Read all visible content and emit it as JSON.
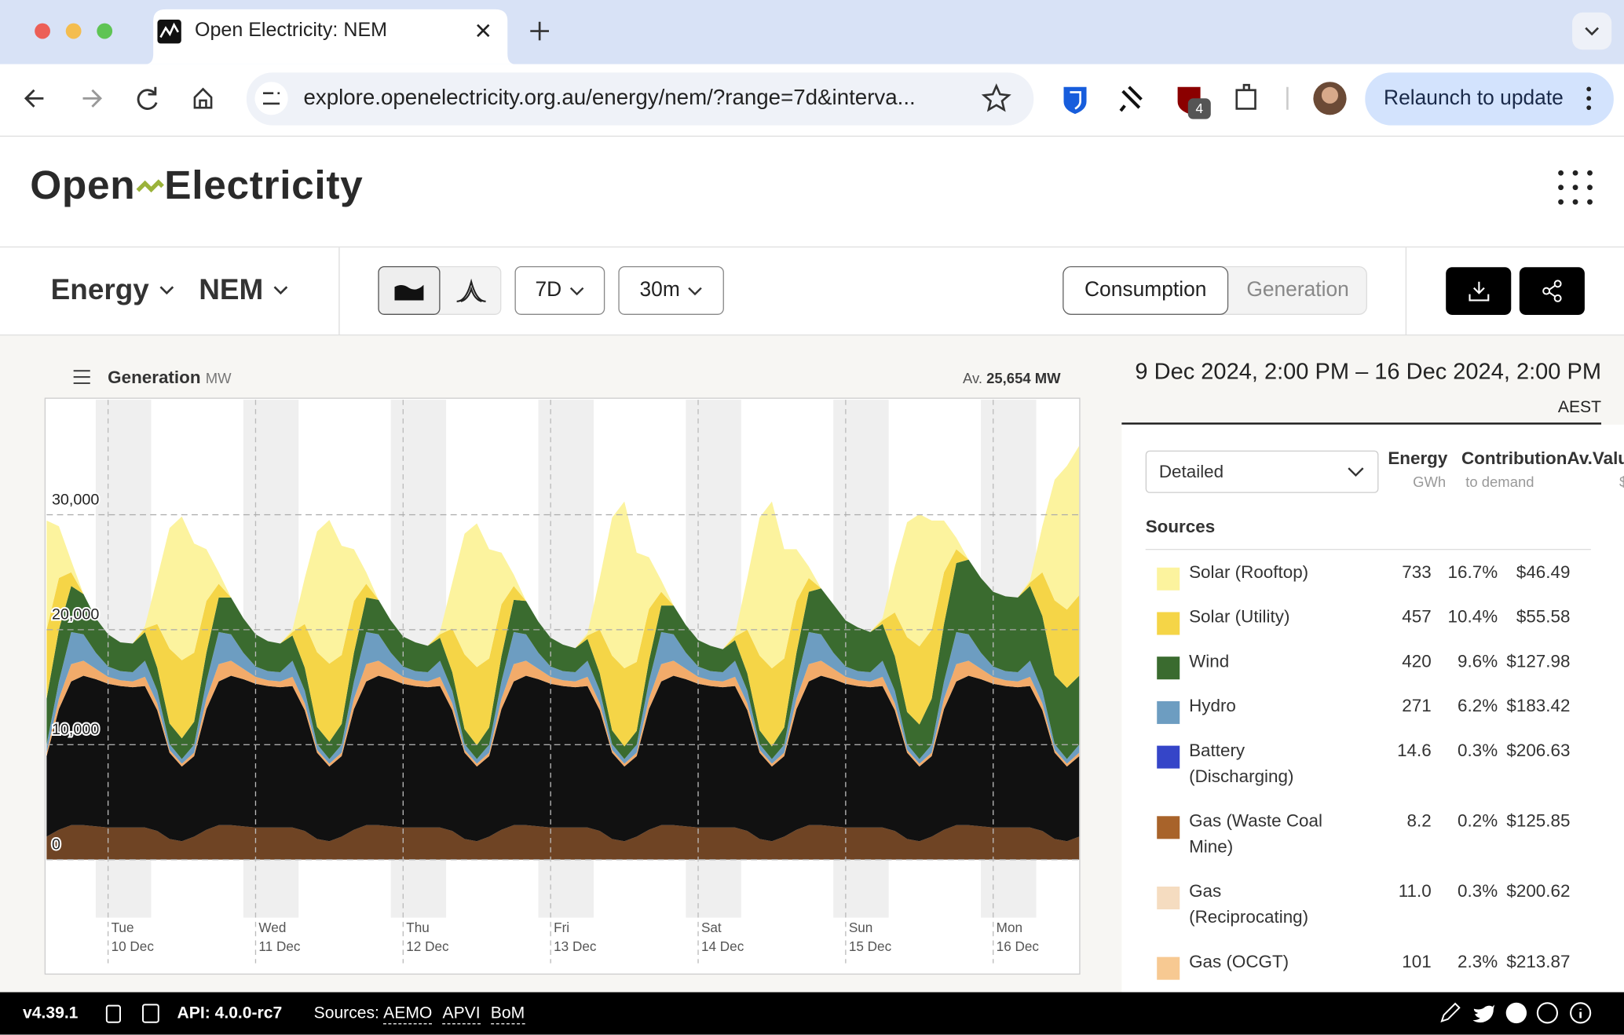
{
  "browser": {
    "tab_title": "Open Electricity: NEM",
    "url": "explore.openelectricity.org.au/energy/nem/?range=7d&interva...",
    "extension_badge": "4",
    "relaunch": "Relaunch to update"
  },
  "header": {
    "logo_left": "Open",
    "logo_right": "Electricity"
  },
  "toolbar": {
    "metric": "Energy",
    "region": "NEM",
    "range": "7D",
    "interval": "30m",
    "tabs": [
      "Consumption",
      "Generation"
    ]
  },
  "chart_data": {
    "type": "area",
    "stacked": true,
    "title": "Generation",
    "unit": "MW",
    "summary_label": "Av.",
    "summary_value": "25,654 MW",
    "grid": true,
    "categories": [
      null,
      null,
      null,
      null,
      null,
      "Tue\n10 Dec",
      null,
      null,
      null,
      null,
      null,
      null,
      null,
      null,
      null,
      null,
      null,
      "Wed\n11 Dec",
      null,
      null,
      null,
      null,
      null,
      null,
      null,
      null,
      null,
      null,
      null,
      "Thu\n12 Dec",
      null,
      null,
      null,
      null,
      null,
      null,
      null,
      null,
      null,
      null,
      null,
      "Fri\n13 Dec",
      null,
      null,
      null,
      null,
      null,
      null,
      null,
      null,
      null,
      null,
      null,
      "Sat\n14 Dec",
      null,
      null,
      null,
      null,
      null,
      null,
      null,
      null,
      null,
      null,
      null,
      "Sun\n15 Dec",
      null,
      null,
      null,
      null,
      null,
      null,
      null,
      null,
      null,
      null,
      null,
      "Mon\n16 Dec",
      null,
      null,
      null,
      null,
      null,
      null,
      null
    ],
    "ylim": [
      -10000,
      40000
    ],
    "yticks": [
      {
        "value": 30000,
        "label": "30,000"
      },
      {
        "value": 20000,
        "label": "20,000"
      },
      {
        "value": 10000,
        "label": "10,000"
      },
      0
    ],
    "series": [
      {
        "color": "#6f4424",
        "values": [
          2000,
          2600,
          3000,
          3000,
          2900,
          2800,
          2800,
          2800,
          2800,
          2500,
          1800,
          1600,
          2000,
          2600,
          3000,
          3000,
          2900,
          2800,
          2800,
          2800,
          2800,
          2500,
          1800,
          1600,
          2000,
          2600,
          3000,
          3000,
          2900,
          2800,
          2800,
          2800,
          2800,
          2500,
          1800,
          1600,
          2000,
          2600,
          3000,
          3000,
          2900,
          2800,
          2800,
          2800,
          2800,
          2500,
          1800,
          1600,
          2000,
          2600,
          3000,
          3000,
          2900,
          2800,
          2800,
          2800,
          2800,
          2500,
          1800,
          1600,
          2000,
          2600,
          3000,
          3000,
          2900,
          2800,
          2800,
          2800,
          2800,
          2500,
          1800,
          1600,
          2000,
          2600,
          3000,
          3000,
          2900,
          2800,
          2800,
          2800,
          2800,
          2500,
          1800,
          1600,
          2000
        ]
      },
      {
        "color": "#111111",
        "values": [
          7000,
          10500,
          12500,
          13000,
          12800,
          12500,
          12300,
          12200,
          12300,
          10500,
          7500,
          6500,
          7000,
          10500,
          12500,
          13000,
          12800,
          12500,
          12300,
          12200,
          12300,
          10500,
          7500,
          6500,
          7000,
          10500,
          12500,
          13000,
          12800,
          12500,
          12300,
          12200,
          12300,
          10500,
          7500,
          6500,
          7000,
          10500,
          12500,
          13000,
          12800,
          12500,
          12300,
          12200,
          12300,
          10500,
          7500,
          6500,
          7000,
          10500,
          12500,
          13000,
          12800,
          12500,
          12300,
          12200,
          12300,
          10500,
          7500,
          6500,
          7000,
          10500,
          12500,
          13000,
          12800,
          12500,
          12300,
          12200,
          12300,
          10500,
          7500,
          6500,
          7000,
          10500,
          12500,
          13000,
          12800,
          12500,
          12300,
          12200,
          12300,
          10500,
          7500,
          6500,
          7000
        ]
      },
      {
        "color": "#f2ab6a",
        "values": [
          300,
          900,
          1500,
          1300,
          900,
          600,
          500,
          500,
          800,
          600,
          250,
          250,
          300,
          900,
          1500,
          1300,
          900,
          600,
          500,
          500,
          800,
          600,
          250,
          250,
          300,
          900,
          1500,
          1300,
          900,
          600,
          500,
          500,
          800,
          600,
          250,
          250,
          300,
          900,
          1500,
          1300,
          900,
          600,
          500,
          500,
          800,
          600,
          250,
          250,
          300,
          900,
          1500,
          1300,
          900,
          600,
          500,
          500,
          800,
          600,
          250,
          250,
          300,
          900,
          1500,
          1300,
          900,
          600,
          500,
          500,
          800,
          600,
          250,
          250,
          300,
          900,
          1500,
          1300,
          900,
          600,
          500,
          500,
          800,
          600,
          250,
          250,
          300
        ]
      },
      {
        "color": "#6d9dc1",
        "values": [
          700,
          1500,
          2800,
          2300,
          1400,
          900,
          800,
          800,
          1400,
          1100,
          500,
          400,
          700,
          1500,
          2800,
          2300,
          1400,
          900,
          800,
          800,
          1400,
          1100,
          500,
          400,
          700,
          1500,
          2800,
          2300,
          1400,
          900,
          800,
          800,
          1400,
          1100,
          500,
          400,
          700,
          1500,
          2800,
          2300,
          1400,
          900,
          800,
          800,
          1400,
          1100,
          500,
          400,
          700,
          1500,
          2800,
          2300,
          1400,
          900,
          800,
          800,
          1400,
          1100,
          500,
          400,
          700,
          1500,
          2800,
          2300,
          1400,
          900,
          800,
          800,
          1400,
          1100,
          500,
          400,
          700,
          1500,
          2800,
          2300,
          1400,
          900,
          800,
          800,
          1400,
          1100,
          500,
          400,
          700
        ]
      },
      {
        "color": "#3a6b2f",
        "values": [
          4000,
          4500,
          4000,
          3500,
          3000,
          2800,
          2500,
          2500,
          2500,
          2000,
          1800,
          1800,
          2000,
          2500,
          3000,
          3200,
          3000,
          2800,
          2600,
          2500,
          2200,
          2000,
          1500,
          1500,
          1800,
          2500,
          3000,
          3000,
          2800,
          2600,
          2500,
          2300,
          2000,
          1600,
          1300,
          1200,
          1500,
          2200,
          2800,
          2900,
          2700,
          2500,
          2300,
          2100,
          1900,
          1500,
          1200,
          1100,
          1200,
          1800,
          2300,
          2500,
          2400,
          2300,
          2200,
          2000,
          1800,
          1500,
          1200,
          1100,
          1500,
          2500,
          3500,
          4000,
          4200,
          4000,
          3800,
          3500,
          3200,
          3000,
          2800,
          3000,
          4000,
          5000,
          6000,
          6500,
          6500,
          6500,
          6500,
          6500,
          6500,
          6500,
          6000,
          6200,
          6000
        ]
      },
      {
        "color": "#f5d547",
        "values": [
          6000,
          4500,
          1200,
          0,
          0,
          0,
          0,
          0,
          300,
          3800,
          6500,
          6800,
          6000,
          4500,
          1200,
          0,
          0,
          0,
          0,
          0,
          300,
          3800,
          6500,
          6800,
          6000,
          4500,
          1200,
          0,
          0,
          0,
          0,
          0,
          300,
          3800,
          6500,
          6800,
          6000,
          4500,
          1200,
          0,
          0,
          0,
          0,
          0,
          300,
          3800,
          6500,
          6800,
          6000,
          4500,
          1200,
          0,
          0,
          0,
          0,
          0,
          300,
          3800,
          6500,
          6800,
          6000,
          4500,
          1200,
          0,
          0,
          0,
          0,
          0,
          300,
          3800,
          6500,
          6800,
          6000,
          4500,
          1200,
          0,
          0,
          0,
          0,
          0,
          300,
          3800,
          6500,
          6800,
          7000
        ]
      },
      {
        "color": "#fcf39e",
        "values": [
          9500,
          4500,
          1000,
          0,
          0,
          0,
          0,
          0,
          200,
          4000,
          10500,
          12500,
          9500,
          4500,
          1000,
          0,
          0,
          0,
          0,
          0,
          200,
          4000,
          10500,
          12500,
          9500,
          4500,
          1000,
          0,
          0,
          0,
          0,
          0,
          200,
          4000,
          10500,
          12500,
          9500,
          4500,
          1000,
          0,
          0,
          0,
          0,
          0,
          200,
          4500,
          12000,
          14500,
          9500,
          4500,
          1000,
          0,
          0,
          0,
          0,
          0,
          200,
          4500,
          12000,
          14500,
          9500,
          4500,
          1000,
          0,
          0,
          0,
          0,
          0,
          200,
          4000,
          10000,
          11500,
          9500,
          4500,
          1000,
          0,
          0,
          0,
          0,
          0,
          200,
          4000,
          10500,
          12500,
          13000
        ]
      }
    ]
  },
  "panel": {
    "date_range": "9 Dec 2024, 2:00 PM – 16 Dec 2024, 2:00 PM",
    "timezone": "AEST",
    "view": "Detailed",
    "columns": [
      {
        "title": "Energy",
        "unit": "GWh"
      },
      {
        "title": "Contribution",
        "unit": "to demand"
      },
      {
        "title": "Av.Valu",
        "unit": "$/MW"
      }
    ],
    "section": "Sources",
    "rows": [
      {
        "name": "Solar (Rooftop)",
        "color": "#fcf39e",
        "energy": "733",
        "contribution": "16.7%",
        "value": "$46.49"
      },
      {
        "name": "Solar (Utility)",
        "color": "#f5d547",
        "energy": "457",
        "contribution": "10.4%",
        "value": "$55.58"
      },
      {
        "name": "Wind",
        "color": "#3a6b2f",
        "energy": "420",
        "contribution": "9.6%",
        "value": "$127.98"
      },
      {
        "name": "Hydro",
        "color": "#6d9dc1",
        "energy": "271",
        "contribution": "6.2%",
        "value": "$183.42"
      },
      {
        "name": "Battery (Discharging)",
        "color": "#3545c8",
        "energy": "14.6",
        "contribution": "0.3%",
        "value": "$206.63"
      },
      {
        "name": "Gas (Waste Coal Mine)",
        "color": "#a8632a",
        "energy": "8.2",
        "contribution": "0.2%",
        "value": "$125.85"
      },
      {
        "name": "Gas (Reciprocating)",
        "color": "#f5dcc0",
        "energy": "11.0",
        "contribution": "0.3%",
        "value": "$200.62"
      },
      {
        "name": "Gas (OCGT)",
        "color": "#f7c992",
        "energy": "101",
        "contribution": "2.3%",
        "value": "$213.87"
      }
    ]
  },
  "footer": {
    "version": "v4.39.1",
    "api": "API: 4.0.0-rc7",
    "sources_label": "Sources:",
    "sources": [
      "AEMO",
      "APVI",
      "BoM"
    ]
  }
}
